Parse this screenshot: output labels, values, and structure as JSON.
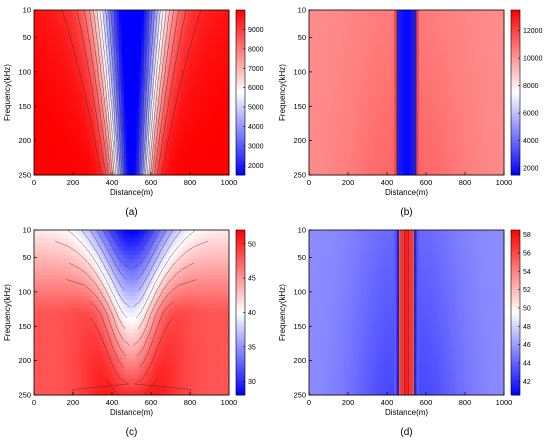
{
  "chart_data": [
    {
      "type": "heatmap",
      "panel_label": "(a)",
      "xlabel": "Distance(m)",
      "ylabel": "Frequency(kHz)",
      "xlim": [
        0,
        1000
      ],
      "ylim": [
        10,
        250
      ],
      "x_ticks": [
        0,
        200,
        400,
        600,
        800,
        1000
      ],
      "y_ticks": [
        10,
        50,
        100,
        150,
        200,
        250
      ],
      "colorbar": {
        "min": 1500,
        "max": 10000,
        "ticks": [
          2000,
          3000,
          4000,
          5000,
          6000,
          7000,
          8000,
          9000
        ],
        "colormap": "blue-white-red"
      },
      "field": {
        "center_x": 500,
        "half_width_top": 120,
        "half_width_bottom": 65,
        "center_value": 1500,
        "outer_value": 10000,
        "edge_gradient": "strong near top"
      }
    },
    {
      "type": "heatmap",
      "panel_label": "(b)",
      "xlabel": "Distance(m)",
      "ylabel": "Frequency(kHz)",
      "xlim": [
        0,
        1000
      ],
      "ylim": [
        10,
        250
      ],
      "x_ticks": [
        0,
        200,
        400,
        600,
        800,
        1000
      ],
      "y_ticks": [
        10,
        50,
        100,
        150,
        200,
        250
      ],
      "colorbar": {
        "min": 1500,
        "max": 13500,
        "ticks": [
          2000,
          4000,
          6000,
          8000,
          10000,
          12000
        ],
        "colormap": "blue-white-red"
      },
      "field": {
        "center_x": 500,
        "core_half_width": 55,
        "center_value": 1600,
        "outer_value": 10200,
        "ridge_value": 12500
      }
    },
    {
      "type": "heatmap",
      "panel_label": "(c)",
      "xlabel": "Distance(m)",
      "ylabel": "Frequency(kHz)",
      "xlim": [
        0,
        1000
      ],
      "ylim": [
        10,
        250
      ],
      "x_ticks": [
        0,
        200,
        400,
        600,
        800,
        1000
      ],
      "y_ticks": [
        10,
        50,
        100,
        150,
        200,
        250
      ],
      "colorbar": {
        "min": 28,
        "max": 52,
        "ticks": [
          30,
          35,
          40,
          45,
          50
        ],
        "colormap": "blue-white-red"
      },
      "field": {
        "center_x": 500,
        "center_value_top": 28,
        "center_value_bottom": 50,
        "max_value": 52,
        "max_near_x": [
          400,
          600
        ]
      }
    },
    {
      "type": "heatmap",
      "panel_label": "(d)",
      "xlabel": "Distance(m)",
      "ylabel": "Frequency(kHz)",
      "xlim": [
        0,
        1000
      ],
      "ylim": [
        10,
        250
      ],
      "x_ticks": [
        0,
        200,
        400,
        600,
        800,
        1000
      ],
      "y_ticks": [
        10,
        50,
        100,
        150,
        200,
        250
      ],
      "colorbar": {
        "min": 40.5,
        "max": 58.5,
        "ticks": [
          42,
          44,
          46,
          48,
          50,
          52,
          54,
          56,
          58
        ],
        "colormap": "blue-white-red"
      },
      "field": {
        "center_x": 500,
        "core_half_width": 55,
        "center_value": 58,
        "outer_value": 45,
        "trough_value": 41
      }
    }
  ]
}
